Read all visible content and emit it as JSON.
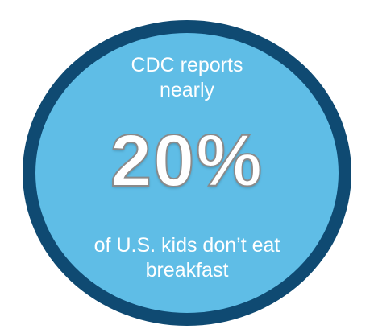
{
  "infographic": {
    "headline_line1": "CDC reports",
    "headline_line2": "nearly",
    "stat": "20%",
    "footer_line1": "of U.S. kids don’t eat",
    "footer_line2": "breakfast"
  },
  "colors": {
    "fill": "#5fbde6",
    "border": "#0f4a72",
    "text": "#ffffff"
  }
}
